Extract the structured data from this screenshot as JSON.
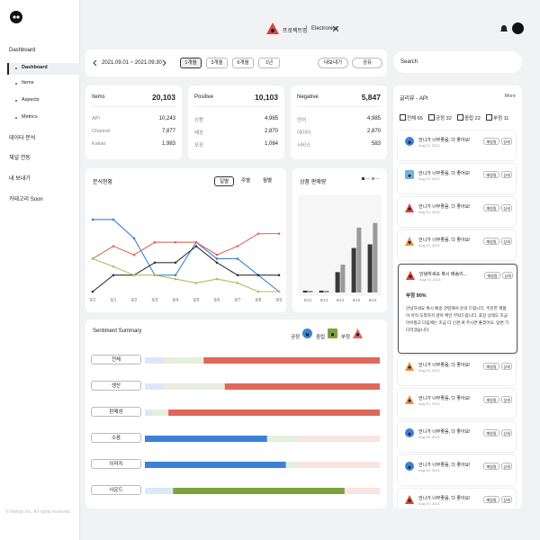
{
  "sidebar": {
    "items": [
      "Dashboard",
      "Dashboard",
      "Items",
      "Aspects",
      "Metrics",
      "데이터 분석",
      "채널 연동",
      "내 보내기",
      "카테고리 Soon"
    ],
    "footer": "© Intergo Inc. All rights reserved."
  },
  "header": {
    "project": "프로젝트명",
    "category": "Electronics"
  },
  "toolbar": {
    "date_range": "2021.09.01  ~  2021.09.30",
    "periods": [
      "1개월",
      "3개월",
      "6개월",
      "1년"
    ],
    "actions": [
      "내보내기",
      "공유"
    ],
    "search": "Search"
  },
  "stats": [
    {
      "title": "Items",
      "total": "20,103",
      "rows": [
        [
          "API",
          "10,243"
        ],
        [
          "Channel",
          "7,877"
        ],
        [
          "Kakao",
          "1,983"
        ]
      ]
    },
    {
      "title": "Positive",
      "total": "10,103",
      "rows": [
        [
          "상품",
          "4,985"
        ],
        [
          "배송",
          "2,870"
        ],
        [
          "포장",
          "1,084"
        ]
      ]
    },
    {
      "title": "Negative",
      "total": "5,847",
      "rows": [
        [
          "언어",
          "4,985"
        ],
        [
          "데이터",
          "2,870"
        ],
        [
          "서비스",
          "583"
        ]
      ]
    }
  ],
  "chart_data": [
    {
      "type": "line",
      "title": "분석현황",
      "toggles": [
        "일별",
        "주별",
        "월별"
      ],
      "categories": [
        "9/1",
        "9/1",
        "9/2",
        "9/3",
        "9/4",
        "9/5",
        "9/6",
        "9/7",
        "9/8",
        "9/9"
      ],
      "ylim": [
        0,
        100
      ],
      "series": [
        {
          "color": "#3b82d6",
          "values": [
            92,
            92,
            68,
            21,
            21,
            63,
            42,
            42,
            21,
            0
          ]
        },
        {
          "color": "#e0685a",
          "values": [
            42,
            58,
            47,
            63,
            63,
            63,
            47,
            58,
            74,
            74
          ]
        },
        {
          "color": "#333333",
          "values": [
            0,
            21,
            21,
            37,
            37,
            58,
            37,
            21,
            21,
            21
          ]
        },
        {
          "color": "#b5bd5a",
          "values": [
            42,
            32,
            21,
            21,
            16,
            11,
            16,
            11,
            0,
            0
          ]
        }
      ]
    },
    {
      "type": "bar",
      "title": "상품 판매량",
      "categories": [
        "9/12",
        "9/13",
        "9/14",
        "9/15",
        "9/16"
      ],
      "ylim": [
        0,
        100
      ],
      "series": [
        {
          "color": "#3a3a3a",
          "values": [
            2,
            2,
            22,
            48,
            52
          ]
        },
        {
          "color": "#9a9a9a",
          "values": [
            2,
            2,
            30,
            70,
            75
          ]
        }
      ]
    },
    {
      "type": "stacked_bar",
      "title": "Sentiment Summary",
      "categories": [
        "전체",
        "생산",
        "판매성",
        "소음",
        "이미지",
        "사운드"
      ],
      "xlim": [
        0,
        100
      ],
      "series": [
        {
          "name": "긍정",
          "color": "#3b82d6",
          "values": [
            8,
            8,
            3,
            52,
            60,
            12
          ]
        },
        {
          "name": "중립",
          "color": "#7aa33c",
          "values": [
            17,
            26,
            7,
            13,
            5,
            73
          ]
        },
        {
          "name": "부정",
          "color": "#e0685a",
          "values": [
            75,
            66,
            90,
            35,
            35,
            15
          ]
        }
      ]
    }
  ],
  "reviews": {
    "title": "글리뷰 - API",
    "more": "More",
    "filters": [
      "전체 65",
      "긍정 32",
      "중립 22",
      "부정 11"
    ],
    "actions": [
      "매칭됨",
      "상세"
    ],
    "items": [
      {
        "text": "언니가 너무좋음, 다 좋아요!",
        "date": "Aug 20, 2021",
        "icon": {
          "shape": "circle",
          "color": "#3b82d6"
        }
      },
      {
        "text": "언니가 너무좋음, 다 좋아요!",
        "date": "Aug 20, 2021",
        "icon": {
          "shape": "square",
          "color": "#6fb3e0"
        }
      },
      {
        "text": "언니가 너무좋음, 다 좋아요!",
        "date": "Aug 20, 2021",
        "icon": {
          "shape": "triangle",
          "color": "#d9433a"
        }
      },
      {
        "text": "언니가 너무좋음, 다 좋아요!",
        "date": "Aug 20, 2021",
        "icon": {
          "shape": "triangle",
          "color": "#e8904a"
        }
      },
      {
        "text": "안녕하세요 혹시 배송이...",
        "date": "Aug 20, 2021",
        "icon": {
          "shape": "triangle",
          "color": "#d9433a"
        },
        "score": "부정 90%",
        "body": "안녕하세요 혹시 배송 관련해서 문의 드립니다. 주문한 제품이 아직 도착하지 않아 확인 부탁드립니다. 포장 상태도 조금 아쉬웠고 다음에는 조금 더 신경 써 주시면 좋겠어요. 답변 기다리겠습니다."
      },
      {
        "text": "언니가 너무좋음, 다 좋아요!",
        "date": "Aug 20, 2021",
        "icon": {
          "shape": "triangle",
          "color": "#e8904a"
        }
      },
      {
        "text": "언니가 너무좋음, 다 좋아요!",
        "date": "Aug 20, 2021",
        "icon": {
          "shape": "triangle",
          "color": "#e8904a"
        }
      },
      {
        "text": "언니가 너무좋음, 다 좋아요!",
        "date": "Aug 20, 2021",
        "icon": {
          "shape": "circle",
          "color": "#3b82d6"
        }
      },
      {
        "text": "언니가 너무좋음, 다 좋아요!",
        "date": "Aug 20, 2021",
        "icon": {
          "shape": "circle",
          "color": "#3b82d6"
        }
      },
      {
        "text": "언니가 너무좋음, 다 좋아요!",
        "date": "Aug 20, 2021",
        "icon": {
          "shape": "triangle",
          "color": "#d9433a"
        }
      }
    ]
  }
}
